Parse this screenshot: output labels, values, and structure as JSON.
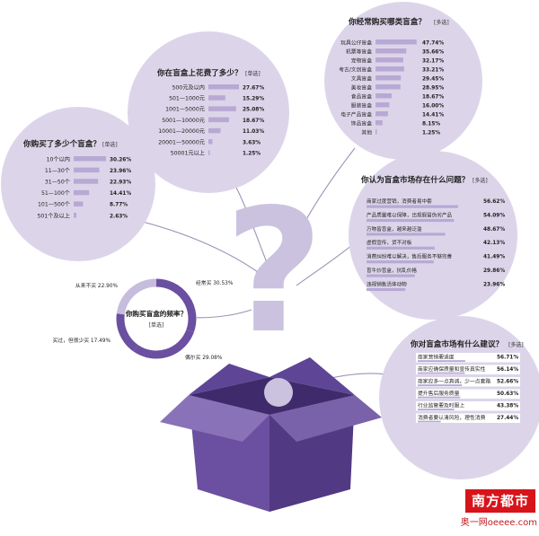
{
  "colors": {
    "circle": "#dcd5ea",
    "bar": "#b7a9d4",
    "box": "#6b4fa0",
    "box_dark": "#523983",
    "box_light": "#8a72b8",
    "question": "#cbc2df",
    "ring_primary": "#6b4fa0",
    "ring_secondary": "#c6bcdc",
    "brand_red": "#d7141a"
  },
  "brand": {
    "name": "南方都市報",
    "site": "奥一网oeeee.com"
  },
  "chart_data": [
    {
      "id": "count",
      "type": "bar",
      "title": "你购买了多少个盲盒？",
      "tag": "[单选]",
      "categories": [
        "10个以内",
        "11—30个",
        "31—50个",
        "51—100个",
        "101—500个",
        "501个及以上"
      ],
      "value_labels": [
        "30.26%",
        "23.96%",
        "22.93%",
        "14.41%",
        "8.77%",
        "2.63%"
      ],
      "values": [
        30.26,
        23.96,
        22.93,
        14.41,
        8.77,
        2.63
      ]
    },
    {
      "id": "spend",
      "type": "bar",
      "title": "你在盲盒上花费了多少？",
      "tag": "[单选]",
      "categories": [
        "500元及以内",
        "501—1000元",
        "1001—5000元",
        "5001—10000元",
        "10001—20000元",
        "20001—50000元",
        "50001元以上"
      ],
      "value_labels": [
        "27.67%",
        "15.29%",
        "25.08%",
        "18.67%",
        "11.03%",
        "3.63%",
        "1.25%"
      ],
      "values": [
        27.67,
        15.29,
        25.08,
        18.67,
        11.03,
        3.63,
        1.25
      ]
    },
    {
      "id": "category",
      "type": "bar",
      "title": "你经常购买哪类盲盒？",
      "tag": "[多选]",
      "categories": [
        "玩具公仔盲盒",
        "机票等盲盒",
        "宠物盲盒",
        "考古/文创盲盒",
        "文具盲盒",
        "美妆盲盒",
        "食品盲盒",
        "服装盲盒",
        "电子产品盲盒",
        "饰品盲盒",
        "其他"
      ],
      "value_labels": [
        "47.74%",
        "35.66%",
        "32.17%",
        "33.21%",
        "29.45%",
        "28.95%",
        "18.67%",
        "16.00%",
        "14.41%",
        "8.15%",
        "1.25%"
      ],
      "values": [
        47.74,
        35.66,
        32.17,
        33.21,
        29.45,
        28.95,
        18.67,
        16.0,
        14.41,
        8.15,
        1.25
      ]
    },
    {
      "id": "problems",
      "type": "bar",
      "title": "你认为盲盒市场存在什么问题？",
      "tag": "[多选]",
      "categories": [
        "商家过度营销，消费者易中套",
        "产品质量难以保障，出现假冒伪劣产品",
        "万物皆盲盒，越来越泛滥",
        "虚假宣传，货不对板",
        "消费纠纷难以解决，售后服务不够完善",
        "盲牛炒盲盒，抗乱价格",
        "违规销售活体动物"
      ],
      "value_labels": [
        "56.62%",
        "54.09%",
        "48.67%",
        "42.13%",
        "41.49%",
        "29.86%",
        "23.96%"
      ],
      "values": [
        56.62,
        54.09,
        48.67,
        42.13,
        41.49,
        29.86,
        23.96
      ]
    },
    {
      "id": "suggestions",
      "type": "bar",
      "title": "你对盲盒市场有什么建议？",
      "tag": "[多选]",
      "categories": [
        "商家营销要适度",
        "商家应确保质量和宣传真实性",
        "商家应多一点真诚，少一点套路",
        "提升售后服务质量",
        "行业监管要及时跟上",
        "消费者要认清风险，理性消费"
      ],
      "value_labels": [
        "56.71%",
        "56.14%",
        "52.66%",
        "50.63%",
        "43.38%",
        "27.44%"
      ],
      "values": [
        56.71,
        56.14,
        52.66,
        50.63,
        43.38,
        27.44
      ]
    },
    {
      "id": "frequency",
      "type": "pie",
      "title": "你购买盲盒的频率？",
      "tag": "[单选]",
      "categories": [
        "经常买",
        "偶尔买",
        "买过，但很少买",
        "从来不买"
      ],
      "value_labels": [
        "30.53%",
        "29.08%",
        "17.49%",
        "22.90%"
      ],
      "values": [
        30.53,
        29.08,
        17.49,
        22.9
      ]
    }
  ]
}
